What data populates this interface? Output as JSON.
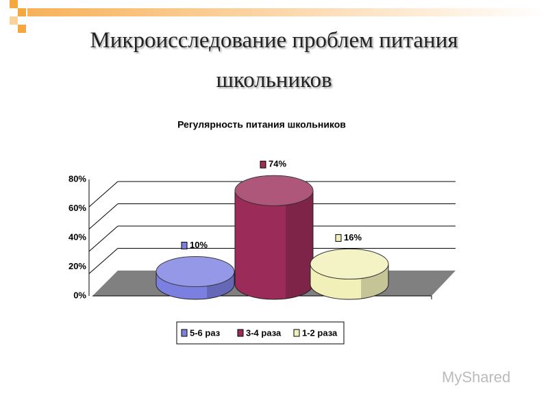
{
  "title": "Микроисследование проблем питания школьников",
  "watermark": "MyShared",
  "chart_data": {
    "type": "cylinder",
    "title": "Регулярность питания школьников",
    "categories": [
      null
    ],
    "series": [
      {
        "name": "5-6 раз",
        "color": "#7b7fe0",
        "values": [
          10
        ],
        "value_labels": [
          "10%"
        ]
      },
      {
        "name": "3-4 раза",
        "color": "#9b2c5a",
        "values": [
          74
        ],
        "value_labels": [
          "74%"
        ]
      },
      {
        "name": "1-2 раза",
        "color": "#f0f0b8",
        "values": [
          16
        ],
        "value_labels": [
          "16%"
        ]
      }
    ],
    "ylim": [
      0,
      80
    ],
    "yticks": [
      {
        "value": 0,
        "label": "0%"
      },
      {
        "value": 20,
        "label": "20%"
      },
      {
        "value": 40,
        "label": "40%"
      },
      {
        "value": 60,
        "label": "60%"
      },
      {
        "value": 80,
        "label": "80%"
      }
    ],
    "grid": true,
    "legend": "bottom"
  }
}
